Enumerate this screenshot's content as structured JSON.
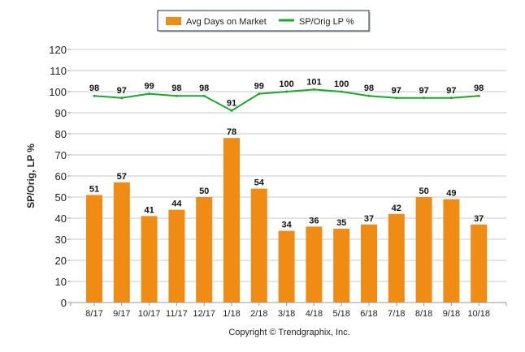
{
  "chart_data": {
    "type": "bar",
    "categories": [
      "8/17",
      "9/17",
      "10/17",
      "11/17",
      "12/17",
      "1/18",
      "2/18",
      "3/18",
      "4/18",
      "5/18",
      "6/18",
      "7/18",
      "8/18",
      "9/18",
      "10/18"
    ],
    "series": [
      {
        "name": "Avg Days on Market",
        "type": "bar",
        "color": "#f08c14",
        "values": [
          51,
          57,
          41,
          44,
          50,
          78,
          54,
          34,
          36,
          35,
          37,
          42,
          50,
          49,
          37
        ]
      },
      {
        "name": "SP/Orig LP %",
        "type": "line",
        "color": "#1aa82a",
        "values": [
          98,
          97,
          99,
          98,
          98,
          91,
          99,
          100,
          101,
          100,
          98,
          97,
          97,
          97,
          98
        ]
      }
    ],
    "ylabel": "SP/Orig, LP %",
    "xlabel": "",
    "ylim": [
      0,
      120
    ],
    "yticks": [
      0,
      10,
      20,
      30,
      40,
      50,
      60,
      70,
      80,
      90,
      100,
      110,
      120
    ],
    "grid": true,
    "legend": "top-center",
    "footer": "Copyright © Trendgraphix, Inc."
  }
}
